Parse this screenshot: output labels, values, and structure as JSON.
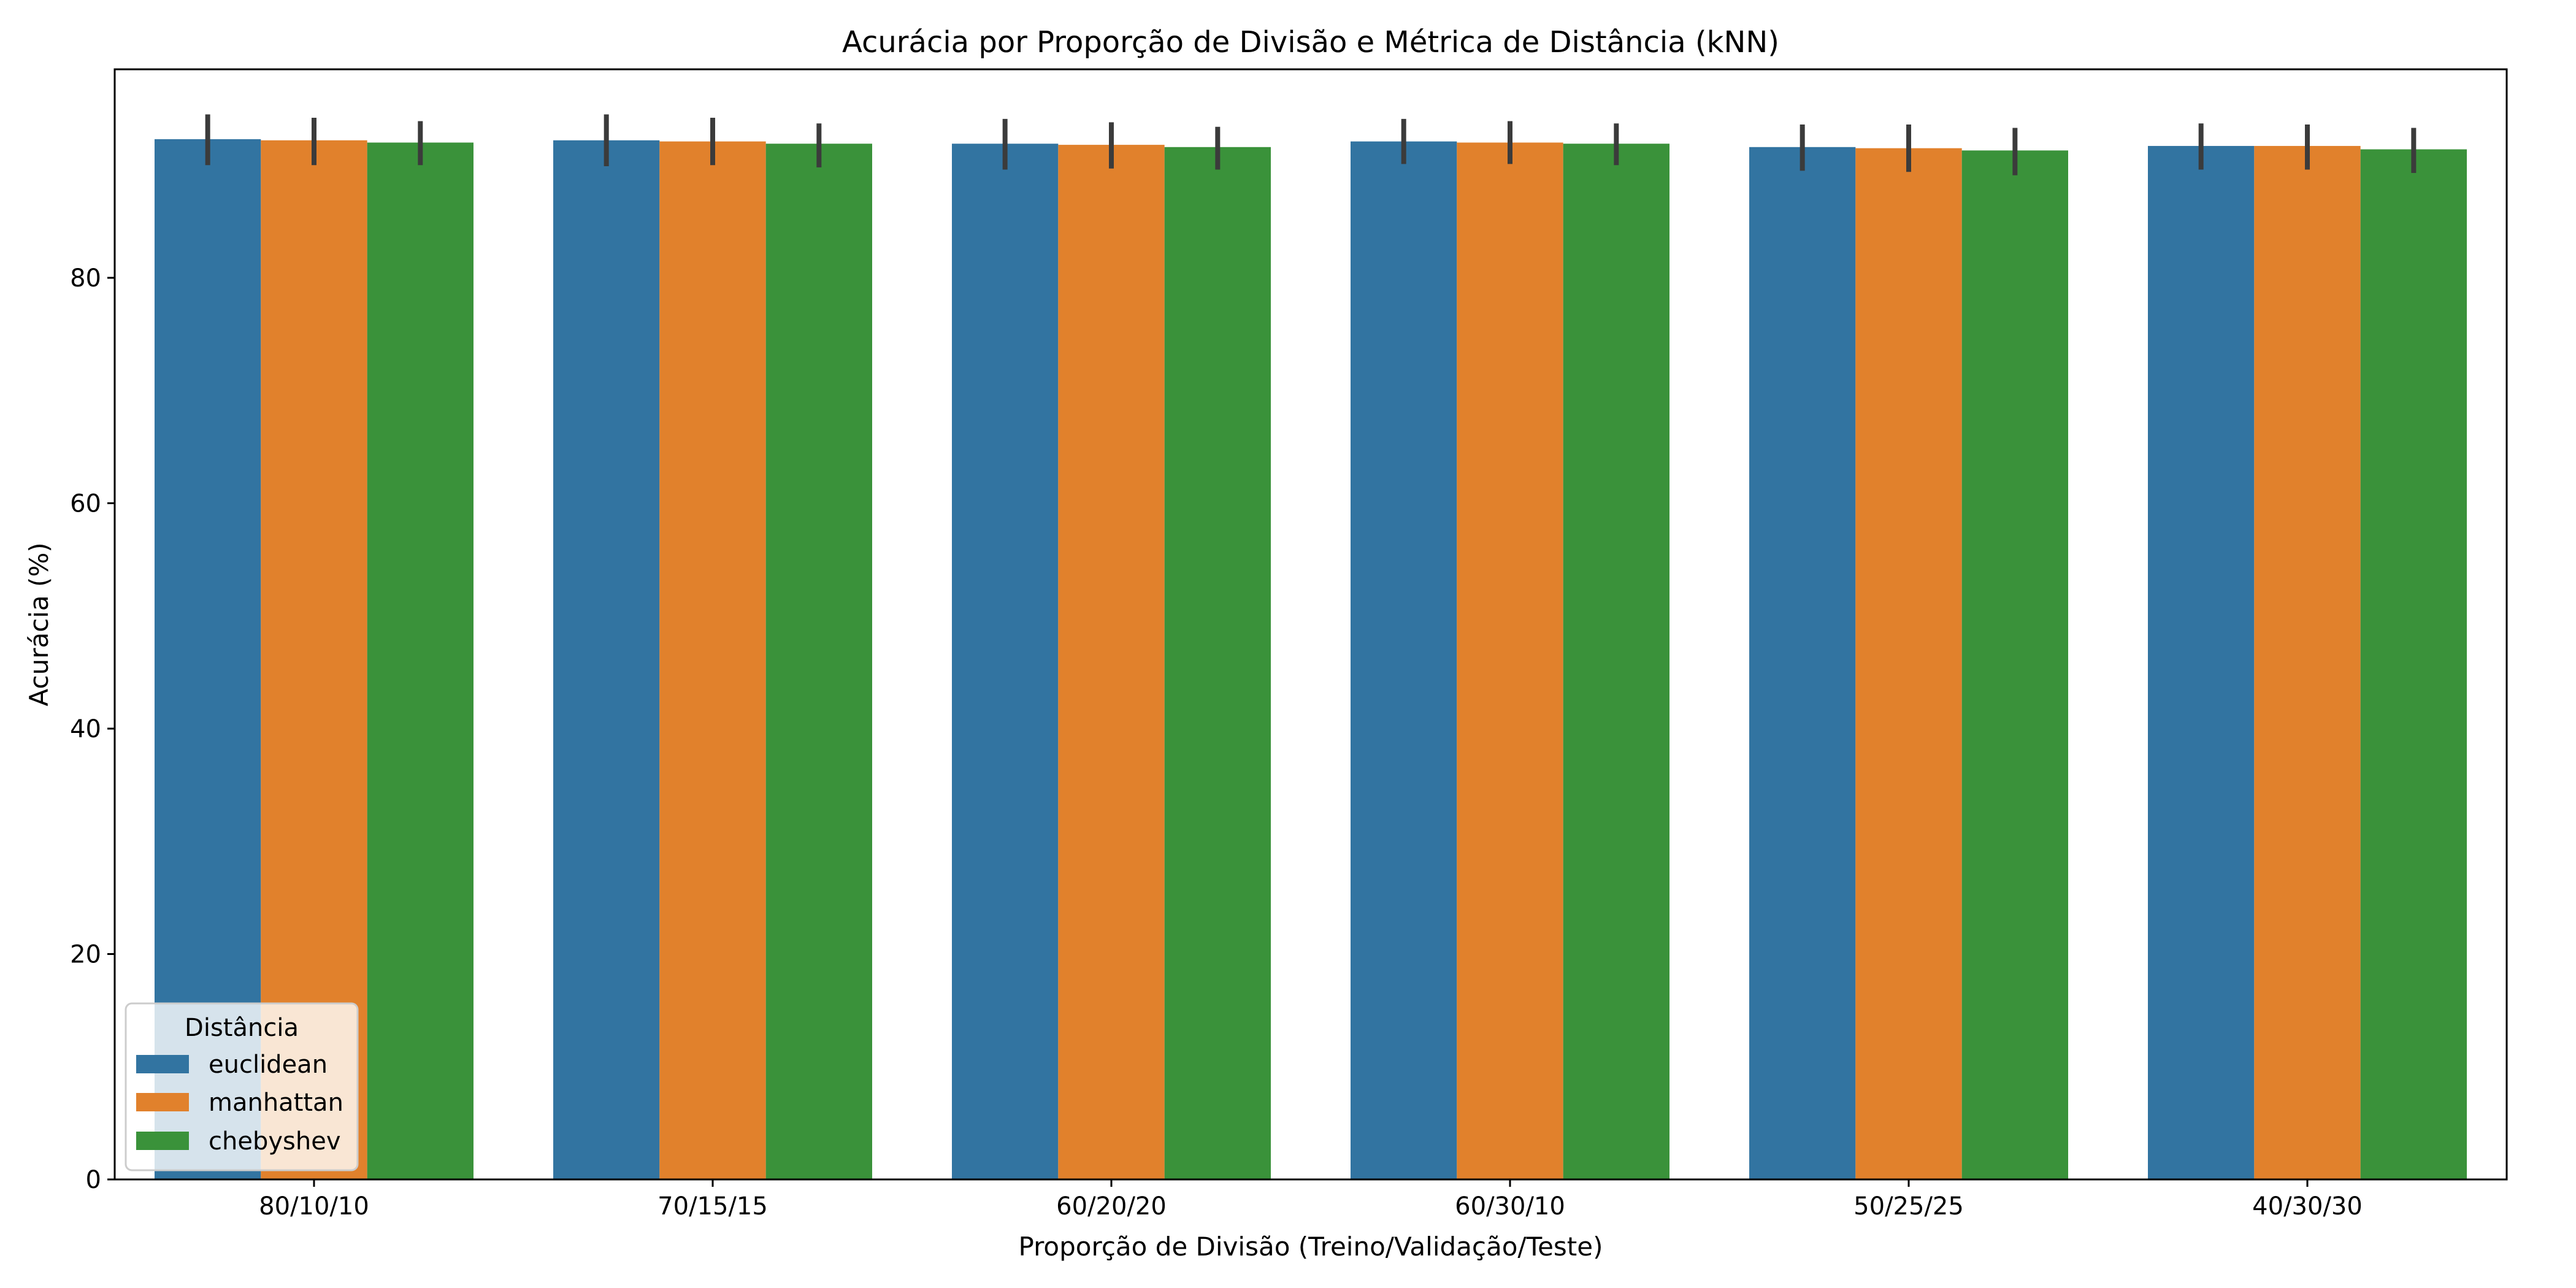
{
  "chart_data": {
    "type": "bar",
    "title": "Acurácia por Proporção de Divisão e Métrica de Distância (kNN)",
    "xlabel": "Proporção de Divisão (Treino/Validação/Teste)",
    "ylabel": "Acurácia (%)",
    "categories": [
      "80/10/10",
      "70/15/15",
      "60/20/20",
      "60/30/10",
      "50/25/25",
      "40/30/30"
    ],
    "ylim": [
      0,
      98.5
    ],
    "yticks": [
      0,
      20,
      40,
      60,
      80
    ],
    "grid": false,
    "series": [
      {
        "name": "euclidean",
        "color": "#3274a1",
        "values": [
          92.3,
          92.2,
          91.9,
          92.1,
          91.6,
          91.7
        ],
        "err_low": [
          90.0,
          89.9,
          89.6,
          90.1,
          89.5,
          89.6
        ],
        "err_high": [
          94.5,
          94.5,
          94.1,
          94.1,
          93.6,
          93.7
        ]
      },
      {
        "name": "manhattan",
        "color": "#e1812c",
        "values": [
          92.2,
          92.1,
          91.8,
          92.0,
          91.5,
          91.7
        ],
        "err_low": [
          90.0,
          90.0,
          89.7,
          90.1,
          89.4,
          89.6
        ],
        "err_high": [
          94.2,
          94.2,
          93.8,
          93.9,
          93.6,
          93.6
        ]
      },
      {
        "name": "chebyshev",
        "color": "#3a923a",
        "values": [
          92.0,
          91.9,
          91.6,
          91.9,
          91.3,
          91.4
        ],
        "err_low": [
          90.0,
          89.8,
          89.6,
          90.0,
          89.1,
          89.3
        ],
        "err_high": [
          93.9,
          93.7,
          93.4,
          93.7,
          93.3,
          93.3
        ]
      }
    ],
    "legend": {
      "title": "Distância",
      "placement": "lower-left"
    }
  }
}
